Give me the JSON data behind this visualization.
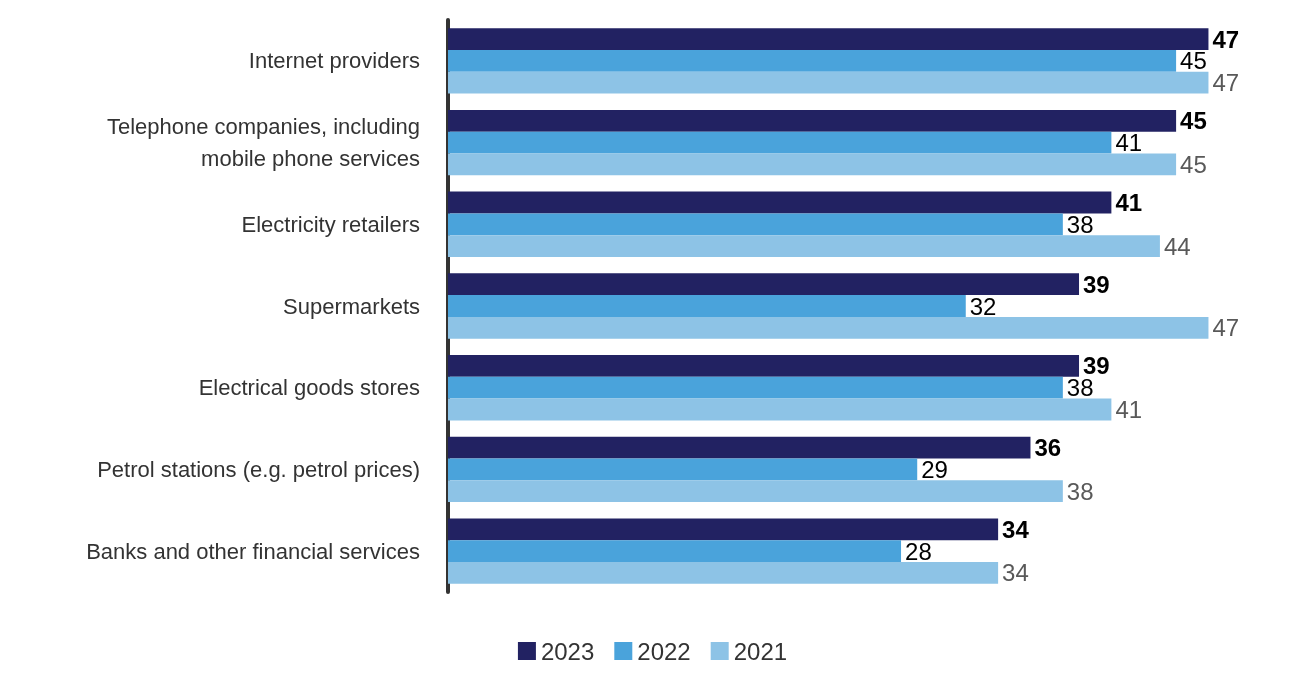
{
  "chart_data": {
    "type": "bar",
    "orientation": "horizontal",
    "categories": [
      "Internet providers",
      "Telephone companies, including\nmobile phone services",
      "Electricity retailers",
      "Supermarkets",
      "Electrical goods stores",
      "Petrol stations (e.g. petrol prices)",
      "Banks and other financial services"
    ],
    "series": [
      {
        "name": "2023",
        "color": "#222262",
        "values": [
          47,
          45,
          41,
          39,
          39,
          36,
          34
        ]
      },
      {
        "name": "2022",
        "color": "#4aa3db",
        "values": [
          45,
          41,
          38,
          32,
          38,
          29,
          28
        ]
      },
      {
        "name": "2021",
        "color": "#8dc3e6",
        "values": [
          47,
          45,
          44,
          47,
          41,
          38,
          34
        ]
      }
    ],
    "data_labels": true,
    "legend": "bottom"
  }
}
